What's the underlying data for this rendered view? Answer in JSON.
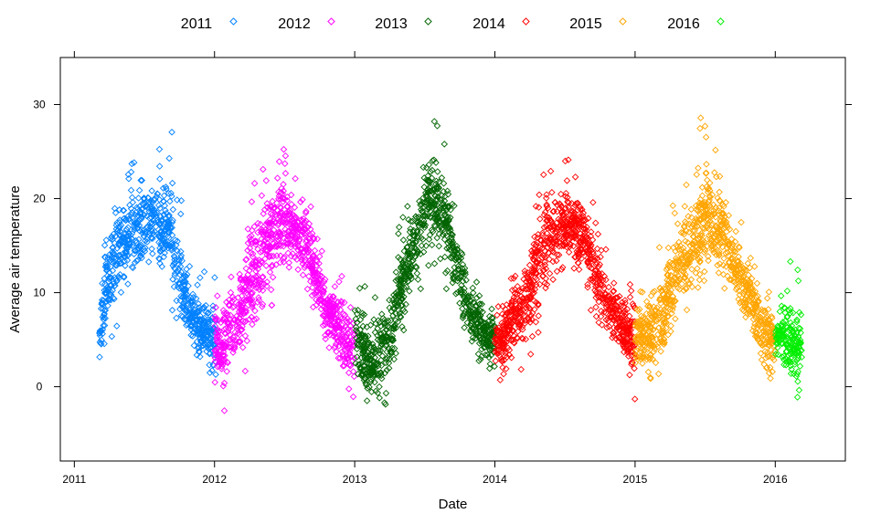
{
  "chart_data": {
    "type": "scatter",
    "xlabel": "Date",
    "ylabel": "Average air temperature",
    "x_ticks": [
      "2011",
      "2012",
      "2013",
      "2014",
      "2015",
      "2016"
    ],
    "y_ticks": [
      "0",
      "10",
      "20",
      "30"
    ],
    "xlim": [
      2010.9,
      2016.5
    ],
    "ylim": [
      -7.9,
      35
    ],
    "grid": false,
    "legend_position": "top",
    "legend_marker": "◇",
    "series": [
      {
        "name": "2011",
        "color": "#0080ff",
        "x": [
          2011.18,
          2011.22,
          2011.26,
          2011.3,
          2011.34,
          2011.38,
          2011.42,
          2011.46,
          2011.5,
          2011.54,
          2011.58,
          2011.62,
          2011.66,
          2011.7,
          2011.74,
          2011.78,
          2011.82,
          2011.86,
          2011.9,
          2011.94,
          2011.99
        ],
        "y_min": [
          -0.8,
          2,
          5,
          5.5,
          8,
          9,
          11,
          10,
          12,
          10,
          11,
          10,
          9,
          8,
          7,
          5,
          3,
          2,
          1,
          0,
          -0.5
        ],
        "y_max": [
          10,
          17,
          19,
          22,
          24,
          23,
          25,
          26,
          28,
          27,
          26,
          25,
          27,
          28,
          26,
          17,
          13,
          12.5,
          13,
          12.5,
          12
        ],
        "y_mid": [
          5,
          10,
          12,
          14,
          15,
          16,
          17,
          17,
          18,
          17,
          18,
          17,
          17,
          15,
          13,
          10,
          8,
          7,
          6,
          6,
          5
        ]
      },
      {
        "name": "2012",
        "color": "#ff00ff",
        "x": [
          2012.0,
          2012.04,
          2012.08,
          2012.12,
          2012.16,
          2012.2,
          2012.24,
          2012.28,
          2012.32,
          2012.36,
          2012.4,
          2012.44,
          2012.48,
          2012.52,
          2012.56,
          2012.6,
          2012.64,
          2012.68,
          2012.72,
          2012.76,
          2012.8,
          2012.84,
          2012.88,
          2012.92,
          2012.98
        ],
        "y_min": [
          0,
          -3,
          -5,
          -2,
          0,
          1,
          2,
          3,
          5,
          6,
          8,
          9,
          10,
          11,
          12,
          11,
          10,
          8,
          6,
          5,
          3,
          2,
          1,
          -2,
          -3.5
        ],
        "y_max": [
          12,
          11,
          13,
          14,
          15,
          18,
          21,
          22,
          26,
          24,
          25,
          26,
          27,
          24,
          23,
          22,
          24,
          21,
          17,
          16,
          14,
          13,
          13,
          12,
          11.5
        ],
        "y_mid": [
          5,
          4,
          5,
          6,
          7,
          9,
          11,
          12,
          14,
          15,
          16,
          17,
          18,
          17,
          17,
          16,
          16,
          14,
          12,
          10,
          8,
          7,
          6,
          5,
          4
        ]
      },
      {
        "name": "2013",
        "color": "#006400",
        "x": [
          2013.0,
          2013.04,
          2013.08,
          2013.12,
          2013.16,
          2013.2,
          2013.24,
          2013.28,
          2013.32,
          2013.36,
          2013.4,
          2013.44,
          2013.48,
          2013.52,
          2013.56,
          2013.6,
          2013.64,
          2013.68,
          2013.72,
          2013.76,
          2013.8,
          2013.84,
          2013.88,
          2013.92,
          2013.98
        ],
        "y_min": [
          1,
          -3,
          -4,
          -3,
          -3,
          -2,
          -3,
          0,
          3,
          5,
          7,
          9,
          10,
          12,
          13,
          12,
          11,
          9,
          7,
          5,
          4,
          3,
          2,
          1.5,
          1.5
        ],
        "y_max": [
          11.5,
          13,
          12,
          11,
          12,
          10,
          11,
          14,
          18,
          20,
          22,
          24,
          27,
          29,
          30,
          27,
          26,
          24,
          20,
          17,
          14,
          13,
          12.5,
          12,
          11
        ],
        "y_mid": [
          6,
          4,
          3,
          3,
          3,
          4,
          5,
          7,
          10,
          12,
          14,
          16,
          18,
          20,
          20,
          19,
          18,
          16,
          13,
          11,
          9,
          8,
          7,
          6,
          5
        ]
      },
      {
        "name": "2014",
        "color": "#ff0000",
        "x": [
          2014.0,
          2014.04,
          2014.08,
          2014.12,
          2014.16,
          2014.2,
          2014.24,
          2014.28,
          2014.32,
          2014.36,
          2014.4,
          2014.44,
          2014.48,
          2014.52,
          2014.56,
          2014.6,
          2014.64,
          2014.68,
          2014.72,
          2014.76,
          2014.8,
          2014.84,
          2014.88,
          2014.92,
          2014.98
        ],
        "y_min": [
          0,
          -0.5,
          0,
          0.5,
          1,
          2,
          3,
          4,
          5,
          6,
          8,
          9,
          10,
          11,
          12,
          11,
          10,
          8,
          6,
          5,
          4,
          3,
          2,
          1,
          -2
        ],
        "y_max": [
          10,
          11,
          12,
          14,
          15,
          16,
          18,
          19,
          22,
          24,
          25,
          26,
          24,
          25,
          27,
          24,
          22,
          21,
          19,
          17,
          15,
          13,
          12.5,
          12,
          11.5
        ],
        "y_mid": [
          5,
          5,
          6,
          7,
          8,
          9,
          10,
          12,
          14,
          15,
          16,
          17,
          17,
          17,
          17,
          16,
          16,
          14,
          12,
          10,
          9,
          8,
          7,
          6,
          5
        ]
      },
      {
        "name": "2015",
        "color": "#ffa500",
        "x": [
          2015.0,
          2015.04,
          2015.08,
          2015.12,
          2015.16,
          2015.2,
          2015.24,
          2015.28,
          2015.32,
          2015.36,
          2015.4,
          2015.44,
          2015.48,
          2015.52,
          2015.56,
          2015.6,
          2015.64,
          2015.68,
          2015.72,
          2015.76,
          2015.8,
          2015.84,
          2015.88,
          2015.92,
          2015.98
        ],
        "y_min": [
          -1.5,
          -1.5,
          -1,
          0,
          1,
          2,
          3,
          4,
          5,
          6,
          8,
          9,
          10,
          11,
          12,
          11,
          10,
          8,
          7,
          6,
          5,
          3,
          1,
          0,
          1
        ],
        "y_max": [
          10,
          12,
          13,
          14,
          16,
          18,
          19,
          20,
          20,
          22,
          24,
          25,
          32,
          28,
          26,
          25,
          23,
          21,
          19,
          18,
          16,
          15,
          14,
          14,
          13
        ],
        "y_mid": [
          5,
          5,
          6,
          6,
          7,
          8,
          10,
          11,
          13,
          14,
          15,
          16,
          17,
          18,
          17,
          16,
          16,
          14,
          12,
          11,
          10,
          9,
          7,
          6,
          5
        ]
      },
      {
        "name": "2016",
        "color": "#00ee00",
        "x": [
          2016.0,
          2016.03,
          2016.06,
          2016.09,
          2016.12,
          2016.15,
          2016.17
        ],
        "y_min": [
          2,
          1,
          0,
          -0.5,
          -1,
          -1.5,
          -1
        ],
        "y_max": [
          9,
          11,
          13,
          14,
          13,
          14,
          13
        ],
        "y_mid": [
          5,
          6,
          6,
          5,
          5,
          4,
          4
        ]
      }
    ]
  }
}
